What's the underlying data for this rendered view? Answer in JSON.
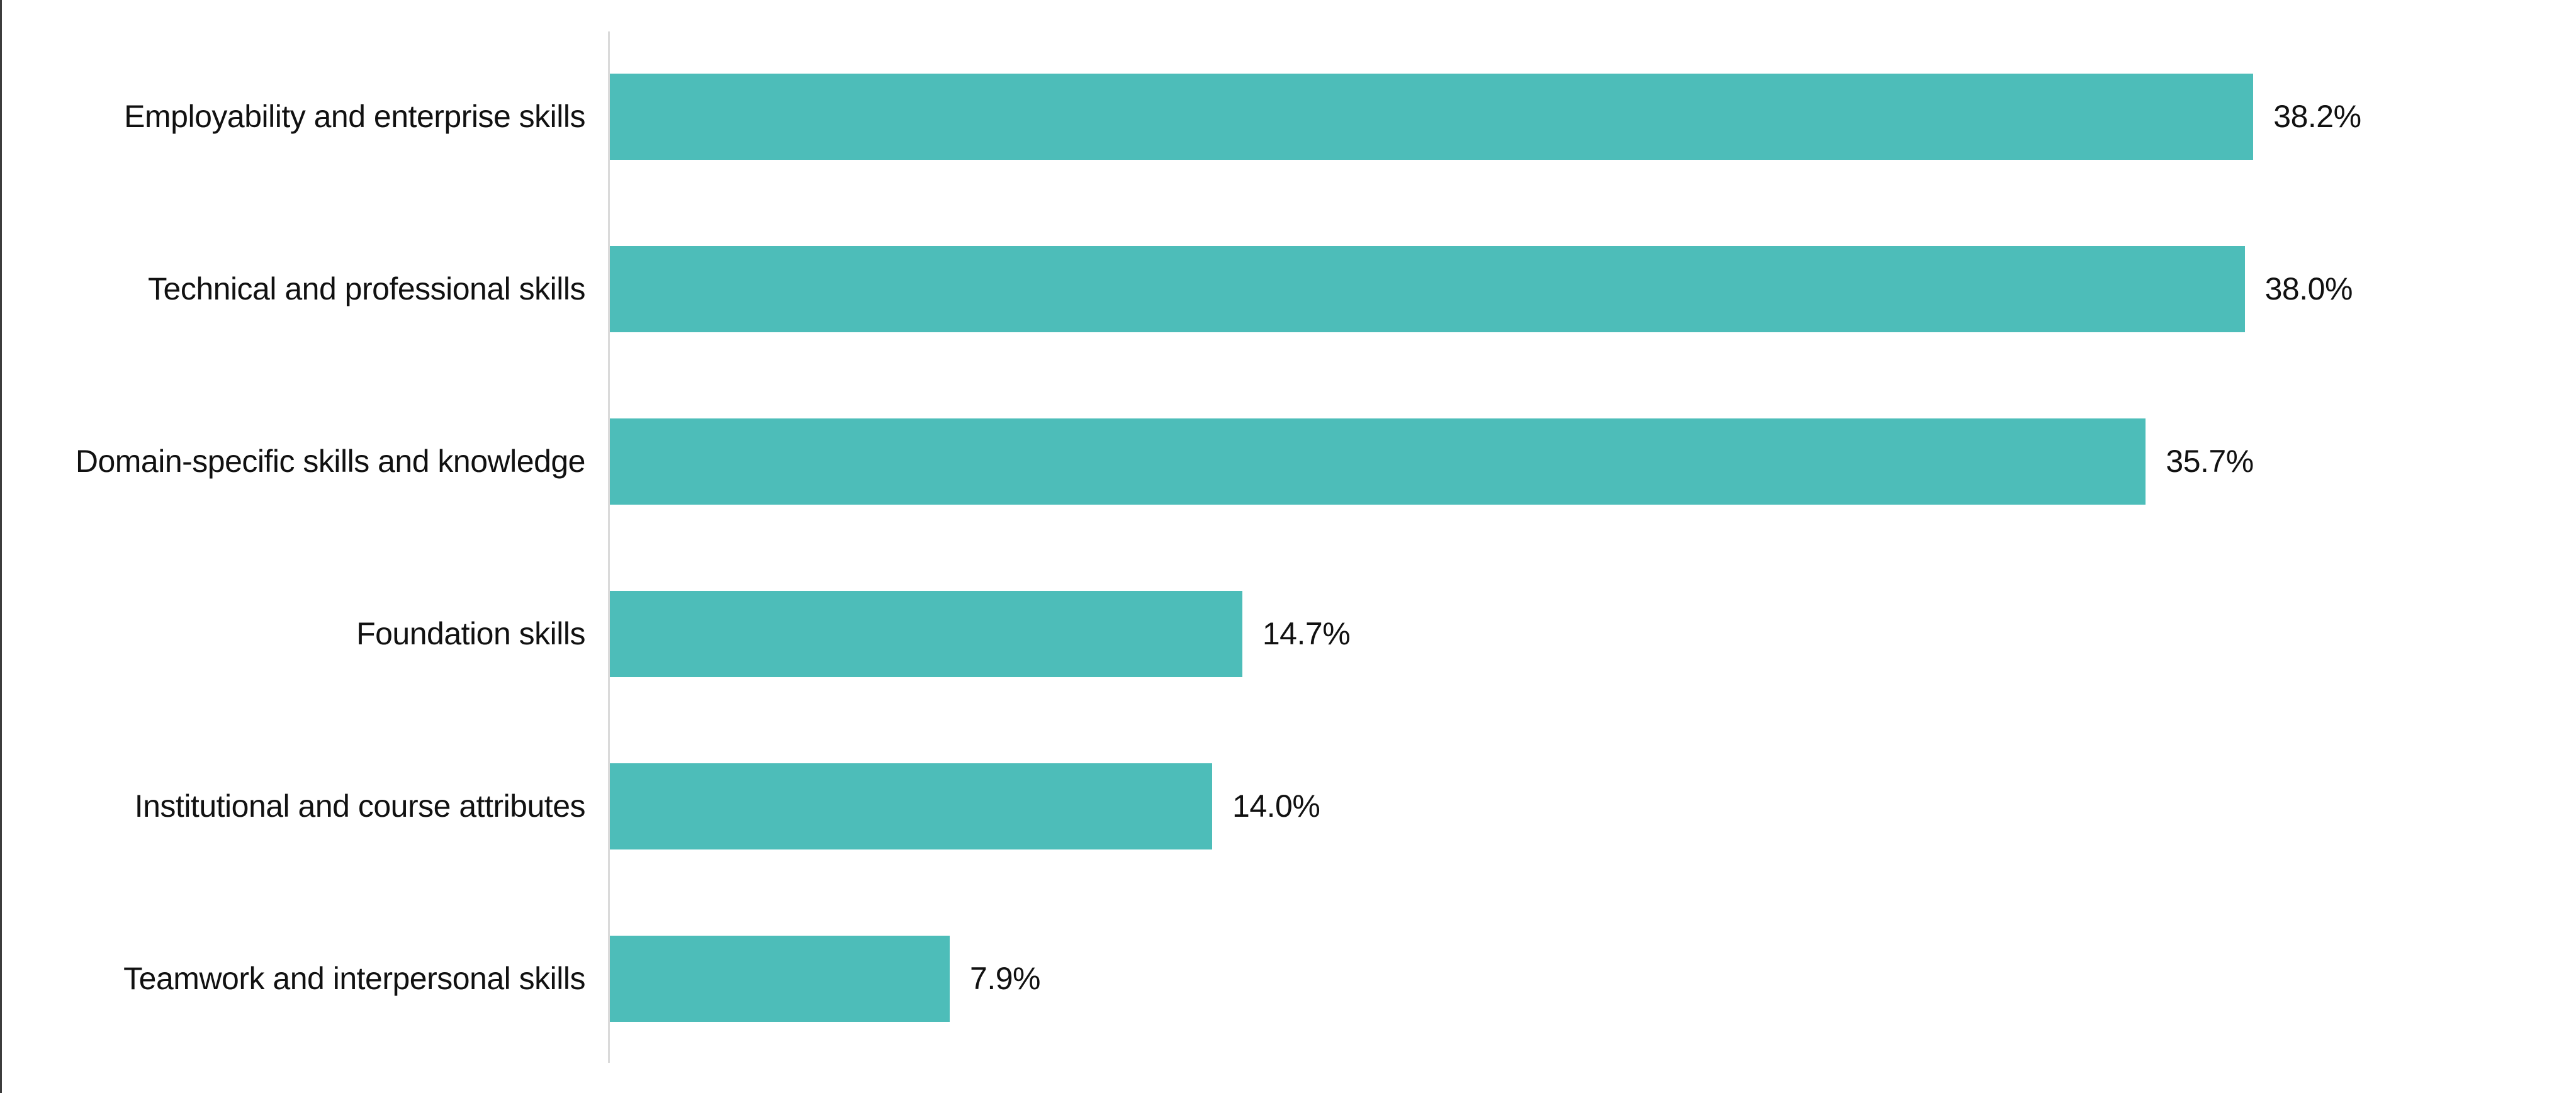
{
  "chart_data": {
    "type": "bar",
    "orientation": "horizontal",
    "title": "",
    "xlabel": "",
    "ylabel": "",
    "categories": [
      "Employability and enterprise skills",
      "Technical and professional skills",
      "Domain-specific skills and knowledge",
      "Foundation skills",
      "Institutional and course attributes",
      "Teamwork and interpersonal skills"
    ],
    "values": [
      38.2,
      38.0,
      35.7,
      14.7,
      14.0,
      7.9
    ],
    "value_labels": [
      "38.2%",
      "38.0%",
      "35.7%",
      "14.7%",
      "14.0%",
      "7.9%"
    ],
    "xlim": [
      0,
      45.7
    ],
    "grid": false,
    "legend": "none",
    "bar_color": "#4DBDB9",
    "axis_line_color": "#DADADA",
    "left_edge_color": "#3C3C3C",
    "label_color": "#111111",
    "background": "#FFFFFF"
  }
}
